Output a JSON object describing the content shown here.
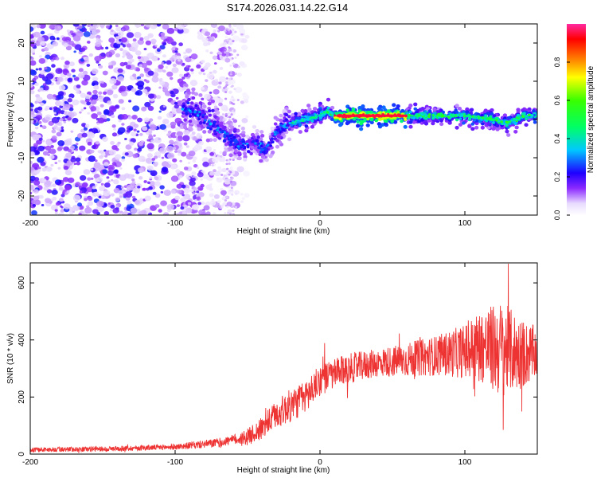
{
  "figure": {
    "title": "S174.2026.031.14.22.G14"
  },
  "chart_data": [
    {
      "type": "heatmap",
      "name": "spectrogram",
      "xlabel": "Height of straight line (km)",
      "ylabel": "Frequency (Hz)",
      "xlim": [
        -200,
        150
      ],
      "ylim": [
        -25,
        25
      ],
      "xticks": [
        -200,
        -100,
        0,
        100
      ],
      "xtick_labels": [
        "-200",
        "-100",
        "0",
        "100"
      ],
      "yticks": [
        -20,
        -10,
        0,
        10,
        20
      ],
      "ytick_labels": [
        "-20",
        "-10",
        "0",
        "10",
        "20"
      ],
      "colorbar": {
        "label": "Normalized spectral amplitude",
        "range": [
          0,
          1
        ],
        "ticks": [
          0.0,
          0.2,
          0.4,
          0.6,
          0.8
        ],
        "tick_labels": [
          "0.0",
          "0.2",
          "0.4",
          "0.6",
          "0.8"
        ]
      },
      "ridge": {
        "description_points_km_hz": [
          [
            -95,
            3
          ],
          [
            -85,
            2
          ],
          [
            -75,
            -1
          ],
          [
            -65,
            -4
          ],
          [
            -55,
            -7
          ],
          [
            -45,
            -6
          ],
          [
            -38,
            -8
          ],
          [
            -32,
            -4
          ],
          [
            -26,
            -2
          ],
          [
            -20,
            -1
          ],
          [
            -10,
            0
          ],
          [
            0,
            1
          ],
          [
            5,
            2
          ],
          [
            10,
            1
          ],
          [
            50,
            1
          ],
          [
            80,
            1
          ],
          [
            100,
            1
          ],
          [
            120,
            0
          ],
          [
            130,
            -1
          ],
          [
            140,
            1
          ],
          [
            150,
            1
          ]
        ],
        "peak_amplitude_range_km": [
          10,
          60
        ],
        "peak_amplitude": 0.95
      },
      "noise_region_km": [
        -200,
        -90
      ]
    },
    {
      "type": "line",
      "name": "snr",
      "xlabel": "Height of straight line (km)",
      "ylabel": "SNR (10 * v/v)",
      "xlim": [
        -200,
        150
      ],
      "ylim": [
        0,
        670
      ],
      "xticks": [
        -200,
        -100,
        0,
        100
      ],
      "xtick_labels": [
        "-200",
        "-100",
        "0",
        "100"
      ],
      "yticks": [
        0,
        200,
        400,
        600
      ],
      "ytick_labels": [
        "0",
        "200",
        "400",
        "600"
      ],
      "color": "#ee3333",
      "series": [
        {
          "name": "SNR",
          "trend_x": [
            -200,
            -150,
            -100,
            -70,
            -50,
            -40,
            -30,
            -20,
            -10,
            0,
            20,
            40,
            60,
            80,
            100,
            110,
            120,
            130,
            140,
            150
          ],
          "trend_y": [
            15,
            18,
            25,
            40,
            60,
            90,
            140,
            170,
            200,
            260,
            300,
            320,
            330,
            345,
            360,
            380,
            370,
            365,
            350,
            355
          ],
          "amplitude_x": [
            -200,
            -100,
            -60,
            -40,
            -20,
            0,
            40,
            80,
            100,
            115,
            125,
            140,
            150
          ],
          "amplitude_y": [
            8,
            10,
            18,
            40,
            60,
            55,
            50,
            70,
            95,
            140,
            170,
            120,
            90
          ],
          "max": 670,
          "min": 0
        }
      ]
    }
  ]
}
